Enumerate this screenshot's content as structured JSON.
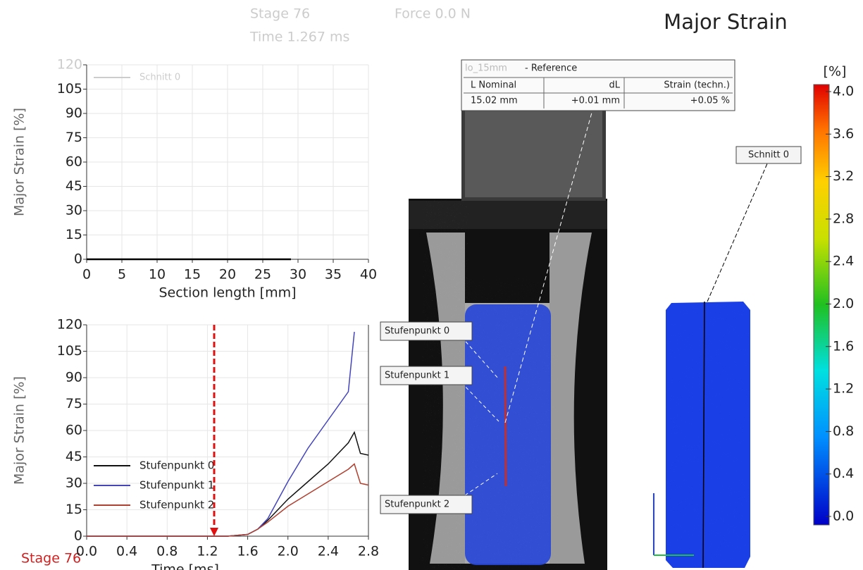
{
  "header": {
    "stage": "Stage 76",
    "force": "Force  0.0 N",
    "time": "Time  1.267 ms",
    "title": "Major Strain"
  },
  "stage_label": "Stage 76",
  "chart_data": [
    {
      "type": "line",
      "ylabel": "Major Strain [%]",
      "xlabel": "Section length [mm]",
      "xlim": [
        0,
        40
      ],
      "xticks": [
        0,
        5,
        10,
        15,
        20,
        25,
        30,
        35,
        40
      ],
      "ylim": [
        0,
        120
      ],
      "yticks": [
        0,
        15,
        30,
        45,
        60,
        75,
        90,
        105,
        120
      ],
      "grid": true,
      "legend": "upper left",
      "x": [
        0,
        29
      ],
      "series": [
        {
          "name": "Schnitt 0",
          "color": "#000000",
          "values": [
            0,
            0
          ]
        }
      ]
    },
    {
      "type": "line",
      "ylabel": "Major Strain [%]",
      "xlabel": "Time [ms]",
      "xlim": [
        0,
        2.8
      ],
      "xticks": [
        {
          "value": 0,
          "label": "0.0"
        },
        0.4,
        0.8,
        1.2,
        1.6,
        {
          "value": 2,
          "label": "2.0"
        },
        2.4,
        2.8
      ],
      "ylim": [
        0,
        120
      ],
      "yticks": [
        0,
        15,
        30,
        45,
        60,
        75,
        90,
        105,
        120
      ],
      "grid": true,
      "legend": "lower left",
      "cursor": 1.267,
      "x": [
        0,
        0.8,
        1.2,
        1.4,
        1.6,
        1.7,
        1.8,
        2.0,
        2.2,
        2.4,
        2.6,
        2.66,
        2.72,
        2.8
      ],
      "series": [
        {
          "name": "Stufenpunkt 0",
          "color": "#111111",
          "values": [
            0,
            0,
            0,
            0,
            1,
            4,
            9,
            21,
            31,
            41,
            53,
            59,
            47,
            46
          ]
        },
        {
          "name": "Stufenpunkt 1",
          "color": "#4444bb",
          "values": [
            0,
            0,
            0,
            0,
            1,
            4,
            10,
            31,
            50,
            66,
            82,
            116,
            null,
            null
          ]
        },
        {
          "name": "Stufenpunkt 2",
          "color": "#b04030",
          "values": [
            0,
            0,
            0,
            0,
            1,
            4,
            8,
            17,
            24,
            31,
            38,
            41,
            30,
            29
          ]
        }
      ]
    }
  ],
  "image": {
    "reference": {
      "name": "lo_15mm",
      "title": " - Reference",
      "headers": [
        "L Nominal",
        "dL",
        "Strain (techn.)"
      ],
      "row": [
        "15.02 mm",
        "+0.01 mm",
        "+0.05 %"
      ]
    },
    "points": [
      "Stufenpunkt 0",
      "Stufenpunkt 1",
      "Stufenpunkt 2"
    ],
    "section": "Schnitt 0"
  },
  "colorbar": {
    "unit": "[%]",
    "ticks": [
      {
        "value": 4,
        "label": "4.0"
      },
      3.6,
      3.2,
      2.8,
      2.4,
      {
        "value": 2,
        "label": "2.0"
      },
      1.6,
      1.2,
      0.8,
      0.4,
      {
        "value": 0,
        "label": "0.0"
      }
    ]
  }
}
